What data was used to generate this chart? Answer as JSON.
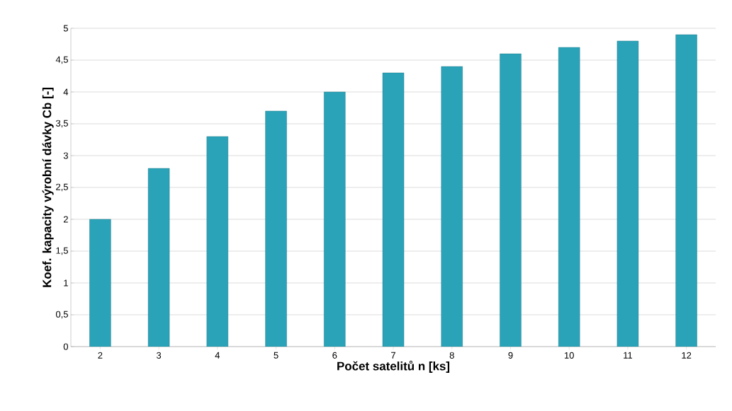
{
  "chart_data": {
    "type": "bar",
    "xlabel": "Počet satelitů n [ks]",
    "ylabel": "Koef.  kapacity výrobní dávky Cb [-]",
    "categories": [
      "2",
      "3",
      "4",
      "5",
      "6",
      "7",
      "8",
      "9",
      "10",
      "11",
      "12"
    ],
    "values": [
      2,
      2.8,
      3.3,
      3.7,
      4.0,
      4.3,
      4.4,
      4.6,
      4.7,
      4.8,
      4.9
    ],
    "color": "#2aa3b8",
    "ylim": [
      0,
      5
    ],
    "yticks": [
      0,
      {
        "value": 0.5,
        "label": "0,5"
      },
      1,
      {
        "value": 1.5,
        "label": "1,5"
      },
      2,
      {
        "value": 2.5,
        "label": "2,5"
      },
      3,
      {
        "value": 3.5,
        "label": "3,5"
      },
      4,
      {
        "value": 4.5,
        "label": "4,5"
      },
      5
    ],
    "grid": "y"
  }
}
